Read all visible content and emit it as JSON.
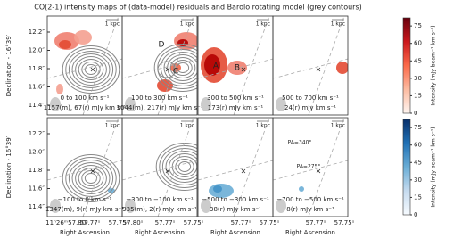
{
  "title": "CO(2-1) intensity maps of (data-model) residuals and Barolo rotating model (grey contours)",
  "y_label": "Declination - 16°39′",
  "x_label": "Right Ascension",
  "y_ticks": [
    "12.2″",
    "12.0″",
    "11.8″",
    "11.6″",
    "11.4″"
  ],
  "x_ticks": [
    [
      "11ʰ26ᵐ57.80ˢ",
      "57.77ˢ",
      "57.75ˢ"
    ],
    [
      "57.80ˢ",
      "57.77ˢ",
      "57.75ˢ"
    ],
    [
      "57.77ˢ",
      "57.75ˢ"
    ],
    [
      "57.77ˢ",
      "57.75ˢ"
    ]
  ],
  "panels": [
    {
      "velocity": "0 to 100 km s⁻¹",
      "flux": "1157(m), 67(r) mJy km s⁻¹",
      "scale": "1 kpc",
      "labels": []
    },
    {
      "velocity": "100 to 300 km s⁻¹",
      "flux": "1044(m), 217(r) mJy km s⁻¹",
      "scale": "1 kpc",
      "labels": [
        "D",
        "C"
      ]
    },
    {
      "velocity": "300 to 500 km s⁻¹",
      "flux": "173(r) mJy km s⁻¹",
      "scale": "1 kpc",
      "labels": [
        "A",
        "B"
      ]
    },
    {
      "velocity": "500 to 700 km s⁻¹",
      "flux": "24(r) mJy km s⁻¹",
      "scale": "1 kpc",
      "labels": []
    },
    {
      "velocity": "−100 to 0 km s⁻¹",
      "flux": "1347(m), 9(r) mJy km s⁻¹",
      "scale": "1 kpc",
      "labels": []
    },
    {
      "velocity": "−300 to −100 km s⁻¹",
      "flux": "935(m), 2(r) mJy km s⁻¹",
      "scale": "1 kpc",
      "labels": []
    },
    {
      "velocity": "−500 to −300 km s⁻¹",
      "flux": "38(r) mJy km s⁻¹",
      "scale": "1 kpc",
      "labels": []
    },
    {
      "velocity": "−700 to −500 km s⁻¹",
      "flux": "8(r) mJy km s⁻¹",
      "scale": "1 kpc",
      "labels": [
        "PA=340°",
        "PA=275°"
      ]
    }
  ],
  "colorbars": [
    {
      "label": "Intensity (mJy beam⁻¹ km s⁻¹)",
      "lim": [
        0,
        82
      ],
      "ticks": [
        0,
        15,
        30,
        45,
        60,
        75
      ],
      "colors": [
        "#fff5f0",
        "#fcbba1",
        "#fb6a4a",
        "#cb181d",
        "#67000d"
      ]
    },
    {
      "label": "Intensity (mJy beam⁻¹ km s⁻¹)",
      "lim": [
        0,
        82
      ],
      "ticks": [
        0,
        15,
        30,
        45,
        60,
        75
      ],
      "colors": [
        "#f7fbff",
        "#c6dbef",
        "#6baed6",
        "#2171b5",
        "#08306b"
      ]
    }
  ]
}
